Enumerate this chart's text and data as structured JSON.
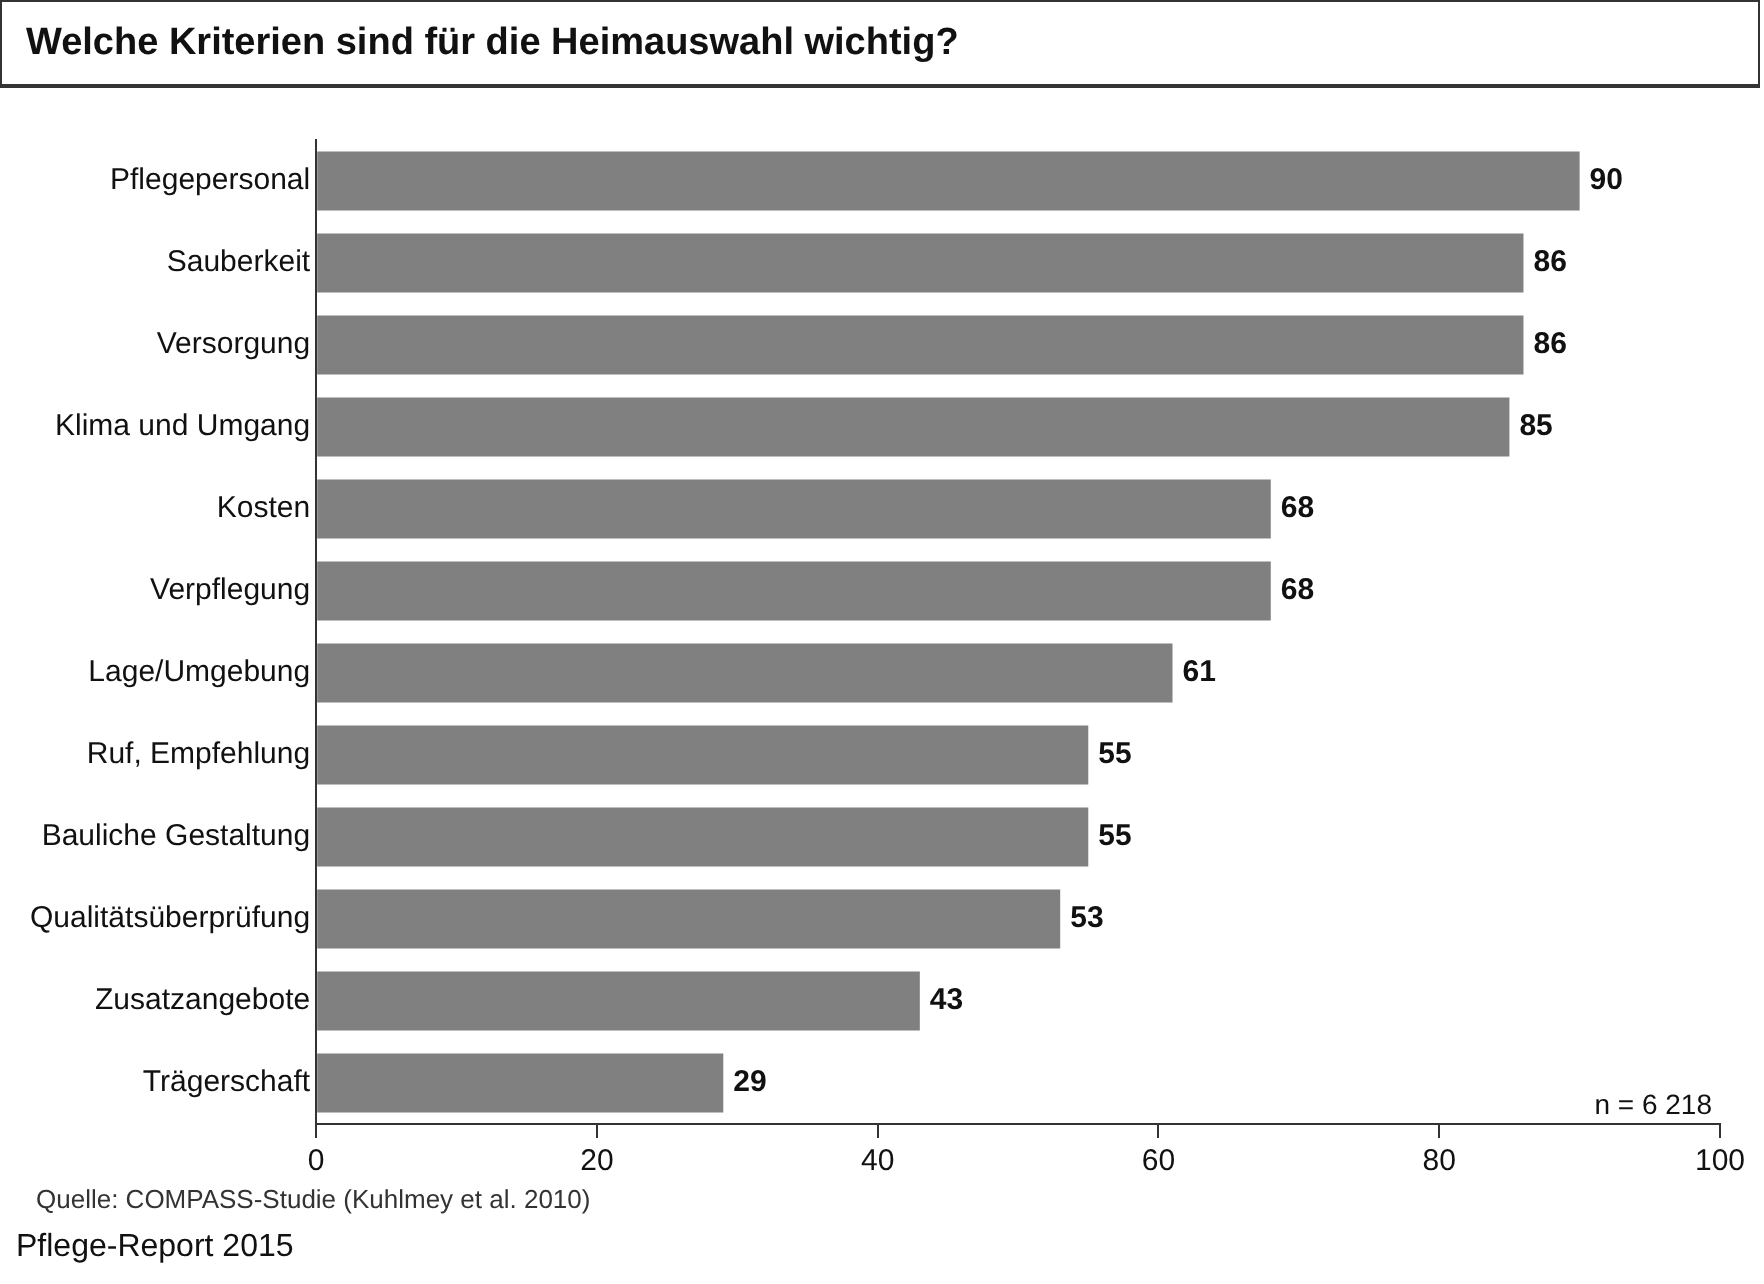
{
  "chart_data": {
    "type": "bar",
    "orientation": "horizontal",
    "title": "Welche Kriterien sind für die Heimauswahl wichtig?",
    "categories": [
      "Pflegepersonal",
      "Sauberkeit",
      "Versorgung",
      "Klima und Umgang",
      "Kosten",
      "Verpflegung",
      "Lage/Umgebung",
      "Ruf, Empfehlung",
      "Bauliche Gestaltung",
      "Qualitätsüberprüfung",
      "Zusatzangebote",
      "Trägerschaft"
    ],
    "values": [
      90,
      86,
      86,
      85,
      68,
      68,
      61,
      55,
      55,
      53,
      43,
      29
    ],
    "color": "#808080",
    "xlim": [
      0,
      100
    ],
    "xticks": [
      0,
      20,
      40,
      60,
      80,
      100
    ],
    "grid": false,
    "legend": false,
    "data_labels": true,
    "annotations": [
      "n = 6 218",
      "Quelle: COMPASS-Studie (Kuhlmey et al. 2010)",
      "Pflege-Report 2015"
    ]
  }
}
